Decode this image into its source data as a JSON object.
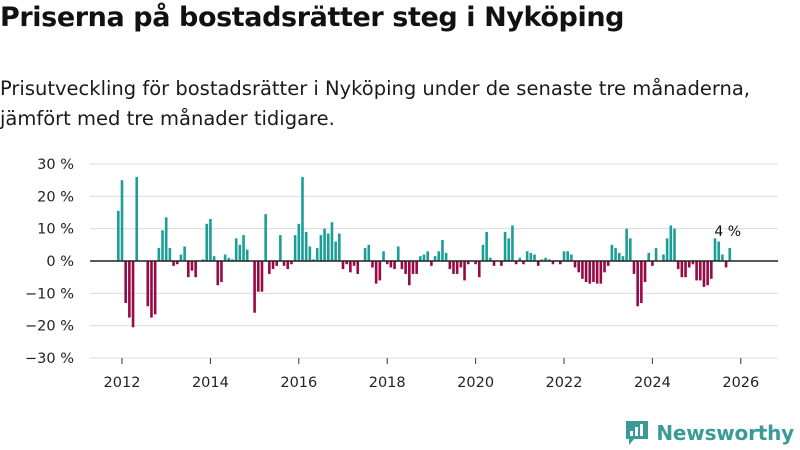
{
  "header": {
    "title": "Priserna på bostadsrätter steg i Nyköping",
    "subtitle": "Prisutveckling för bostadsrätter i Nyköping under de senaste tre månaderna, jämfört med tre månader tidigare."
  },
  "brand": {
    "name": "Newsworthy",
    "color": "#3a9a97"
  },
  "chart_data": {
    "type": "bar",
    "title": "",
    "xlabel": "",
    "ylabel": "",
    "y_unit": "%",
    "ylim": [
      -30,
      30
    ],
    "y_ticks": [
      30,
      20,
      10,
      0,
      -10,
      -20,
      -30
    ],
    "y_tick_labels": [
      "30 %",
      "20 %",
      "10 %",
      "0 %",
      "−10 %",
      "−20 %",
      "−30 %"
    ],
    "x_ticks": [
      2012,
      2014,
      2016,
      2018,
      2020,
      2022,
      2024,
      2026
    ],
    "x_tick_labels": [
      "2012",
      "2014",
      "2016",
      "2018",
      "2020",
      "2022",
      "2024",
      "2026"
    ],
    "grid": true,
    "colors": {
      "positive": "#1a9f97",
      "negative": "#990944"
    },
    "start": {
      "year": 2011,
      "month": 12
    },
    "values": [
      15.5,
      25,
      -13,
      -17.5,
      -20.5,
      26,
      0,
      0,
      -14,
      -17.5,
      -16.5,
      4,
      9.5,
      13.5,
      4,
      -1.5,
      -1,
      2,
      4.5,
      -5,
      -3,
      -5,
      0,
      0.5,
      11.5,
      13,
      1.5,
      -7.5,
      -6.5,
      2,
      1,
      0.5,
      7,
      5,
      8,
      3.5,
      0,
      -16,
      -9.5,
      -9.5,
      14.5,
      -4,
      -2.5,
      -1.5,
      8,
      -1.5,
      -2.5,
      -1,
      8,
      11.5,
      26,
      9,
      4.5,
      0.5,
      4,
      8,
      10,
      8.5,
      12,
      6,
      8.5,
      -2.5,
      -1,
      -3.5,
      -1.5,
      -4,
      0,
      4,
      5,
      -2,
      -7,
      -6,
      3,
      -1,
      -2,
      -2.5,
      4.5,
      -2.5,
      -4,
      -7.5,
      -4,
      -4,
      1.5,
      2,
      3,
      -1.5,
      1.5,
      3,
      6.5,
      2.5,
      -2.5,
      -4,
      -4,
      -2,
      -6,
      -1,
      0,
      -1,
      -5,
      5,
      9,
      1,
      -1.5,
      0,
      -1.5,
      9,
      7,
      11,
      -1,
      1,
      -1,
      3,
      2.5,
      2,
      -1.5,
      0.5,
      1,
      0.5,
      -1,
      0,
      -1,
      3,
      3,
      2,
      -2,
      -3.5,
      -5.5,
      -6.5,
      -7,
      -6.5,
      -7,
      -7,
      -3.5,
      -1.5,
      5,
      4,
      2.5,
      1.5,
      10,
      7,
      -4,
      -14,
      -13,
      -6.5,
      2.5,
      -1.5,
      4,
      0,
      2,
      7,
      11,
      10,
      -2.5,
      -5,
      -5,
      -2,
      -1,
      -6,
      -6,
      -8,
      -7.5,
      -5.5,
      7,
      6,
      2,
      -2,
      4
    ],
    "annotation": {
      "label": "4 %"
    }
  }
}
